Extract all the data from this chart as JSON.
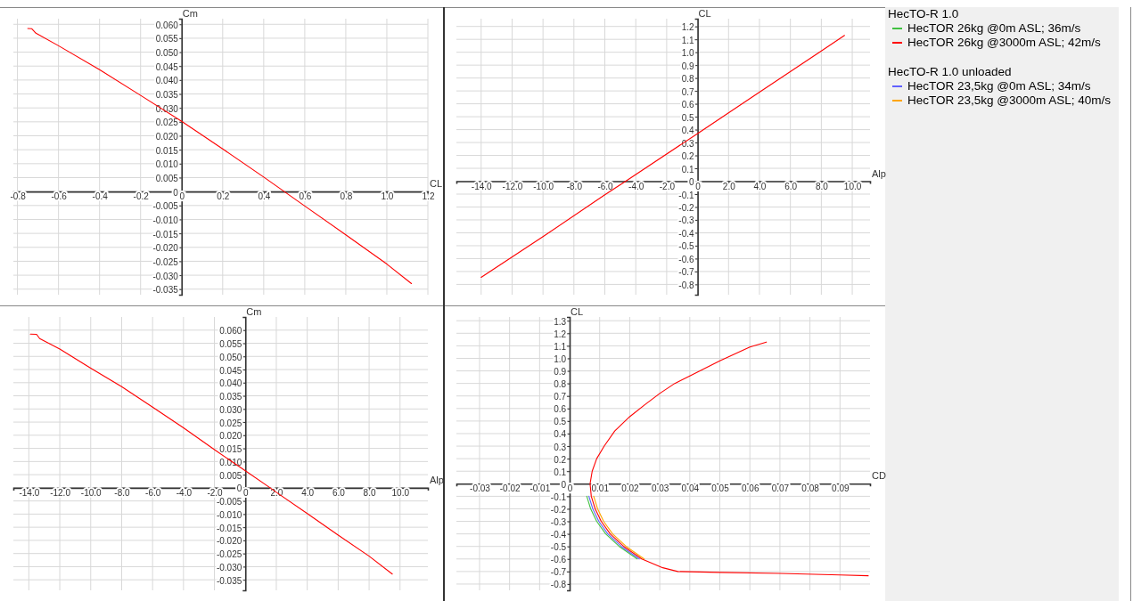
{
  "chart_data": [
    {
      "type": "line",
      "xlabel": "CL",
      "ylabel": "Cm",
      "grid": true,
      "xlim": [
        -0.82,
        1.2
      ],
      "ylim": [
        -0.037,
        0.062
      ],
      "xticks": [
        -0.8,
        -0.6,
        -0.4,
        -0.2,
        0,
        0.2,
        0.4,
        0.6,
        0.8,
        {
          "value": 1,
          "label": "1.0"
        },
        1.2
      ],
      "yticks": [
        {
          "value": 0.06,
          "label": "0.060"
        },
        0.055,
        {
          "value": 0.05,
          "label": "0.050"
        },
        0.045,
        {
          "value": 0.04,
          "label": "0.040"
        },
        0.035,
        {
          "value": 0.03,
          "label": "0.030"
        },
        0.025,
        {
          "value": 0.02,
          "label": "0.020"
        },
        0.015,
        {
          "value": 0.01,
          "label": "0.010"
        },
        0.005,
        0,
        -0.005,
        {
          "value": -0.01,
          "label": "-0.010"
        },
        -0.015,
        {
          "value": -0.02,
          "label": "-0.020"
        },
        -0.025,
        {
          "value": -0.03,
          "label": "-0.030"
        },
        -0.035
      ],
      "x": [
        -0.75,
        -0.73,
        -0.71,
        -0.6,
        -0.4,
        -0.2,
        0,
        0.2,
        0.4,
        0.5,
        0.6,
        0.8,
        1.0,
        1.12
      ],
      "series": [
        {
          "color": "#ff0000",
          "values": [
            0.0585,
            0.0584,
            0.0568,
            0.0523,
            0.0437,
            0.0345,
            0.0252,
            0.0153,
            0.0052,
            0,
            -0.0052,
            -0.0155,
            -0.026,
            -0.033
          ]
        }
      ]
    },
    {
      "type": "line",
      "xlabel": "Alp",
      "ylabel": "CL",
      "grid": true,
      "xlim": [
        -15.6,
        11.15
      ],
      "ylim": [
        -0.88,
        1.26
      ],
      "xticks": [
        {
          "value": -14,
          "label": "-14.0"
        },
        {
          "value": -12,
          "label": "-12.0"
        },
        {
          "value": -10,
          "label": "-10.0"
        },
        {
          "value": -8,
          "label": "-8.0"
        },
        {
          "value": -6,
          "label": "-6.0"
        },
        {
          "value": -4,
          "label": "-4.0"
        },
        {
          "value": -2,
          "label": "-2.0"
        },
        0,
        {
          "value": 2,
          "label": "2.0"
        },
        {
          "value": 4,
          "label": "4.0"
        },
        {
          "value": 6,
          "label": "6.0"
        },
        {
          "value": 8,
          "label": "8.0"
        },
        {
          "value": 10,
          "label": "10.0"
        }
      ],
      "yticks": [
        1.2,
        1.1,
        {
          "value": 1,
          "label": "1.0"
        },
        0.9,
        0.8,
        0.7,
        0.6,
        0.5,
        0.4,
        0.3,
        0.2,
        0.1,
        0,
        -0.1,
        -0.2,
        -0.3,
        -0.4,
        -0.5,
        -0.6,
        -0.7,
        -0.8
      ],
      "x": [
        -14,
        -10,
        -6,
        -4.65,
        0,
        4,
        8,
        9.5
      ],
      "series": [
        {
          "color": "#ff0000",
          "values": [
            -0.745,
            -0.43,
            -0.105,
            0,
            0.37,
            0.69,
            1.01,
            1.13
          ]
        }
      ]
    },
    {
      "type": "line",
      "xlabel": "Alp",
      "ylabel": "Cm",
      "grid": true,
      "xlim": [
        -15,
        11.8
      ],
      "ylim": [
        -0.039,
        0.065
      ],
      "xticks": [
        {
          "value": -14,
          "label": "-14.0"
        },
        {
          "value": -12,
          "label": "-12.0"
        },
        {
          "value": -10,
          "label": "-10.0"
        },
        {
          "value": -8,
          "label": "-8.0"
        },
        {
          "value": -6,
          "label": "-6.0"
        },
        {
          "value": -4,
          "label": "-4.0"
        },
        {
          "value": -2,
          "label": "-2.0"
        },
        0,
        {
          "value": 2,
          "label": "2.0"
        },
        {
          "value": 4,
          "label": "4.0"
        },
        {
          "value": 6,
          "label": "6.0"
        },
        {
          "value": 8,
          "label": "8.0"
        },
        {
          "value": 10,
          "label": "10.0"
        }
      ],
      "yticks": [
        {
          "value": 0.06,
          "label": "0.060"
        },
        0.055,
        {
          "value": 0.05,
          "label": "0.050"
        },
        0.045,
        {
          "value": 0.04,
          "label": "0.040"
        },
        0.035,
        {
          "value": 0.03,
          "label": "0.030"
        },
        0.025,
        {
          "value": 0.02,
          "label": "0.020"
        },
        0.015,
        {
          "value": 0.01,
          "label": "0.010"
        },
        0.005,
        0,
        -0.005,
        {
          "value": -0.01,
          "label": "-0.010"
        },
        -0.015,
        {
          "value": -0.02,
          "label": "-0.020"
        },
        -0.025,
        {
          "value": -0.03,
          "label": "-0.030"
        },
        -0.035
      ],
      "x": [
        -13.9,
        -13.5,
        -13.3,
        -12,
        -10,
        -8,
        -6,
        -4,
        -2,
        0,
        1.6,
        2,
        4,
        6,
        8,
        9.5
      ],
      "series": [
        {
          "color": "#ff0000",
          "values": [
            0.0585,
            0.0584,
            0.0568,
            0.0528,
            0.0455,
            0.0385,
            0.0307,
            0.0228,
            0.0145,
            0.0065,
            0,
            -0.0017,
            -0.0098,
            -0.018,
            -0.026,
            -0.0328
          ]
        }
      ]
    },
    {
      "type": "line",
      "xlabel": "CD",
      "ylabel": "CL",
      "grid": true,
      "legend": "right",
      "xlim": [
        -0.0377,
        0.1
      ],
      "ylim": [
        -0.85,
        1.33
      ],
      "annotations": [
        "HecTO-R 1.0",
        "HecTO-R 1.0 unloaded"
      ],
      "xticks": [
        -0.03,
        -0.02,
        -0.01,
        0,
        0.01,
        0.02,
        0.03,
        0.04,
        0.05,
        0.06,
        0.07,
        0.08,
        0.09
      ],
      "yticks": [
        1.3,
        1.2,
        1.1,
        {
          "value": 1,
          "label": "1.0"
        },
        0.9,
        0.8,
        0.7,
        0.6,
        0.5,
        0.4,
        0.3,
        0.2,
        0.1,
        0,
        -0.1,
        -0.2,
        -0.3,
        -0.4,
        -0.5,
        -0.6,
        -0.7,
        -0.8
      ],
      "series": [
        {
          "name": "HecTOR 26kg @0m ASL; 36m/s",
          "color": "#40c040",
          "x": [
            0.0057,
            0.007,
            0.009,
            0.012,
            0.0165,
            0.0225
          ],
          "values": [
            -0.1,
            -0.2,
            -0.3,
            -0.4,
            -0.5,
            -0.6
          ]
        },
        {
          "name": "HecTOR 26kg @3000m ASL; 42m/s",
          "color": "#ff0000",
          "x": [
            0.0655,
            0.06,
            0.05,
            0.04,
            0.035,
            0.03,
            0.025,
            0.02,
            0.015,
            0.0115,
            0.009,
            0.0075,
            0.0068,
            0.0072,
            0.0085,
            0.0105,
            0.0135,
            0.018,
            0.024,
            0.031,
            0.036,
            0.05,
            0.07,
            0.09,
            0.0994
          ],
          "values": [
            1.13,
            1.09,
            0.98,
            0.86,
            0.8,
            0.72,
            0.63,
            0.535,
            0.42,
            0.3,
            0.2,
            0.1,
            0,
            -0.1,
            -0.2,
            -0.3,
            -0.4,
            -0.5,
            -0.6,
            -0.67,
            -0.7,
            -0.707,
            -0.715,
            -0.727,
            -0.734
          ]
        },
        {
          "name": "HecTOR 23,5kg @0m ASL; 34m/s",
          "color": "#6060ff",
          "x": [
            0.0064,
            0.0077,
            0.0097,
            0.0127,
            0.0172,
            0.0232
          ],
          "values": [
            -0.1,
            -0.2,
            -0.3,
            -0.4,
            -0.5,
            -0.6
          ]
        },
        {
          "name": "HecTOR 23,5kg @3000m ASL; 40m/s",
          "color": "#ffa500",
          "x": [
            0.008,
            0.0093,
            0.0113,
            0.0143,
            0.0188,
            0.0248
          ],
          "values": [
            -0.1,
            -0.2,
            -0.3,
            -0.4,
            -0.5,
            -0.6
          ]
        }
      ]
    }
  ]
}
